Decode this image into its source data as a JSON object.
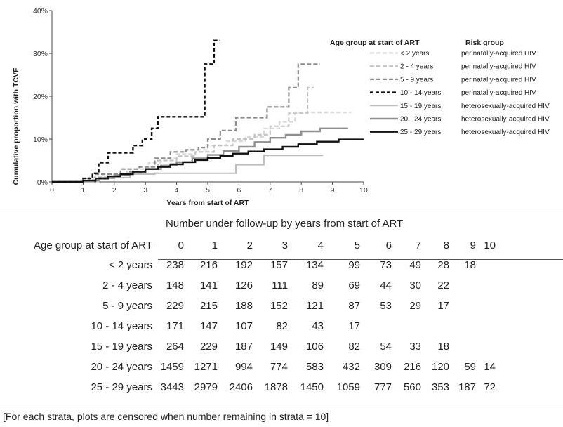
{
  "chart_data": {
    "type": "line",
    "step": true,
    "xlabel": "Years from start of ART",
    "ylabel": "Cumulative proportion with TCVF",
    "xlim": [
      0,
      10
    ],
    "ylim": [
      0,
      40
    ],
    "x_ticks": [
      "0",
      "1",
      "2",
      "3",
      "4",
      "5",
      "6",
      "7",
      "8",
      "9",
      "10"
    ],
    "y_ticks": [
      "0%",
      "10%",
      "20%",
      "30%",
      "40%"
    ],
    "legend": {
      "position": "right",
      "age_header": "Age group at start of ART",
      "risk_header": "Risk group"
    },
    "series": [
      {
        "name": "< 2 years",
        "risk": "perinatally-acquired HIV",
        "color": "#d9d9d9",
        "dash": "6,3",
        "width": 2.2,
        "points": [
          [
            0,
            0
          ],
          [
            1.5,
            0
          ],
          [
            1.5,
            1.2
          ],
          [
            2.0,
            1.2
          ],
          [
            2.0,
            2.0
          ],
          [
            2.6,
            2.0
          ],
          [
            2.6,
            3.0
          ],
          [
            3.1,
            3.0
          ],
          [
            3.1,
            4.5
          ],
          [
            3.5,
            4.5
          ],
          [
            3.5,
            5.5
          ],
          [
            4.0,
            5.5
          ],
          [
            4.0,
            6.5
          ],
          [
            4.5,
            6.5
          ],
          [
            4.5,
            7.5
          ],
          [
            5.0,
            7.5
          ],
          [
            5.0,
            8.5
          ],
          [
            5.6,
            8.5
          ],
          [
            5.6,
            9.5
          ],
          [
            6.2,
            9.5
          ],
          [
            6.2,
            10.5
          ],
          [
            6.8,
            10.5
          ],
          [
            6.8,
            12.5
          ],
          [
            7.3,
            12.5
          ],
          [
            7.3,
            14.0
          ],
          [
            7.8,
            14.0
          ],
          [
            7.8,
            16.2
          ],
          [
            8.0,
            16.2
          ],
          [
            8.6,
            16.2
          ],
          [
            9.6,
            16.2
          ]
        ]
      },
      {
        "name": "2 - 4 years",
        "risk": "perinatally-acquired HIV",
        "color": "#c4c4c4",
        "dash": "6,3",
        "width": 2.2,
        "points": [
          [
            0,
            0
          ],
          [
            1.2,
            0
          ],
          [
            1.2,
            1.0
          ],
          [
            1.8,
            1.0
          ],
          [
            1.8,
            1.8
          ],
          [
            2.4,
            1.8
          ],
          [
            2.4,
            2.5
          ],
          [
            3.0,
            2.5
          ],
          [
            3.0,
            3.5
          ],
          [
            3.4,
            3.5
          ],
          [
            3.4,
            5.0
          ],
          [
            4.0,
            5.0
          ],
          [
            4.0,
            6.0
          ],
          [
            4.6,
            6.0
          ],
          [
            4.6,
            7.0
          ],
          [
            5.2,
            7.0
          ],
          [
            5.2,
            8.5
          ],
          [
            5.8,
            8.5
          ],
          [
            5.8,
            10.0
          ],
          [
            6.5,
            10.0
          ],
          [
            6.5,
            11.0
          ],
          [
            7.0,
            11.0
          ],
          [
            7.0,
            13.0
          ],
          [
            7.6,
            13.0
          ],
          [
            7.6,
            16.0
          ],
          [
            8.2,
            16.0
          ],
          [
            8.2,
            22.0
          ],
          [
            8.4,
            22.0
          ]
        ]
      },
      {
        "name": "5 - 9 years",
        "risk": "perinatally-acquired HIV",
        "color": "#8c8c8c",
        "dash": "6,3",
        "width": 2.2,
        "points": [
          [
            0,
            0
          ],
          [
            1.0,
            0
          ],
          [
            1.0,
            0.8
          ],
          [
            1.3,
            0.8
          ],
          [
            1.3,
            1.8
          ],
          [
            2.2,
            1.8
          ],
          [
            2.2,
            3.0
          ],
          [
            2.8,
            3.0
          ],
          [
            2.8,
            3.5
          ],
          [
            3.3,
            3.5
          ],
          [
            3.3,
            5.5
          ],
          [
            3.8,
            5.5
          ],
          [
            3.8,
            7.0
          ],
          [
            4.3,
            7.0
          ],
          [
            4.3,
            7.5
          ],
          [
            4.7,
            7.5
          ],
          [
            4.7,
            8.0
          ],
          [
            5.0,
            8.0
          ],
          [
            5.0,
            10.0
          ],
          [
            5.4,
            10.0
          ],
          [
            5.4,
            12.0
          ],
          [
            5.9,
            12.0
          ],
          [
            5.9,
            15.0
          ],
          [
            6.9,
            15.0
          ],
          [
            6.9,
            17.5
          ],
          [
            7.6,
            17.5
          ],
          [
            7.6,
            22.0
          ],
          [
            7.9,
            22.0
          ],
          [
            7.9,
            27.5
          ],
          [
            8.6,
            27.5
          ]
        ]
      },
      {
        "name": "10 - 14 years",
        "risk": "perinatally-acquired HIV",
        "color": "#111111",
        "dash": "5,3",
        "width": 2.4,
        "points": [
          [
            0,
            0
          ],
          [
            1.0,
            0
          ],
          [
            1.0,
            0.8
          ],
          [
            1.3,
            0.8
          ],
          [
            1.3,
            2.0
          ],
          [
            1.5,
            2.0
          ],
          [
            1.5,
            4.5
          ],
          [
            1.8,
            4.5
          ],
          [
            1.8,
            6.8
          ],
          [
            2.6,
            6.8
          ],
          [
            2.6,
            8.5
          ],
          [
            2.9,
            8.5
          ],
          [
            2.9,
            10.0
          ],
          [
            3.2,
            10.0
          ],
          [
            3.2,
            12.5
          ],
          [
            3.4,
            12.5
          ],
          [
            3.4,
            15.2
          ],
          [
            4.9,
            15.2
          ],
          [
            4.9,
            27.5
          ],
          [
            5.2,
            27.5
          ],
          [
            5.2,
            33.0
          ],
          [
            5.4,
            33.0
          ]
        ]
      },
      {
        "name": "15 - 19 years",
        "risk": "heterosexually-acquired HIV",
        "color": "#bdbdbd",
        "dash": "",
        "width": 2.0,
        "points": [
          [
            0,
            0
          ],
          [
            1.3,
            0
          ],
          [
            1.3,
            0.5
          ],
          [
            1.8,
            0.5
          ],
          [
            1.8,
            1.0
          ],
          [
            2.5,
            1.0
          ],
          [
            2.5,
            1.8
          ],
          [
            3.3,
            1.8
          ],
          [
            3.3,
            2.0
          ],
          [
            5.9,
            2.0
          ],
          [
            5.9,
            4.0
          ],
          [
            6.8,
            4.0
          ],
          [
            6.8,
            6.2
          ],
          [
            8.7,
            6.2
          ]
        ]
      },
      {
        "name": "20 - 24 years",
        "risk": "heterosexually-acquired HIV",
        "color": "#8f8f8f",
        "dash": "",
        "width": 2.4,
        "points": [
          [
            0,
            0
          ],
          [
            1.0,
            0
          ],
          [
            1.0,
            0.3
          ],
          [
            1.5,
            0.3
          ],
          [
            1.5,
            0.9
          ],
          [
            2.0,
            0.9
          ],
          [
            2.0,
            1.6
          ],
          [
            2.5,
            1.6
          ],
          [
            2.5,
            2.3
          ],
          [
            3.0,
            2.3
          ],
          [
            3.0,
            3.0
          ],
          [
            3.5,
            3.0
          ],
          [
            3.5,
            3.8
          ],
          [
            4.0,
            3.8
          ],
          [
            4.0,
            4.6
          ],
          [
            4.5,
            4.6
          ],
          [
            4.5,
            5.5
          ],
          [
            5.0,
            5.5
          ],
          [
            5.0,
            6.3
          ],
          [
            5.5,
            6.3
          ],
          [
            5.5,
            7.2
          ],
          [
            6.0,
            7.2
          ],
          [
            6.0,
            8.2
          ],
          [
            6.5,
            8.2
          ],
          [
            6.5,
            9.3
          ],
          [
            7.0,
            9.3
          ],
          [
            7.0,
            10.3
          ],
          [
            7.5,
            10.3
          ],
          [
            7.5,
            11.0
          ],
          [
            8.0,
            11.0
          ],
          [
            8.0,
            11.8
          ],
          [
            8.6,
            11.8
          ],
          [
            8.6,
            12.5
          ],
          [
            9.5,
            12.5
          ]
        ]
      },
      {
        "name": "25 - 29 years",
        "risk": "heterosexually-acquired HIV",
        "color": "#111111",
        "dash": "",
        "width": 2.4,
        "points": [
          [
            0,
            0
          ],
          [
            1.0,
            0
          ],
          [
            1.0,
            0.3
          ],
          [
            1.4,
            0.3
          ],
          [
            1.4,
            0.8
          ],
          [
            1.8,
            0.8
          ],
          [
            1.8,
            1.3
          ],
          [
            2.2,
            1.3
          ],
          [
            2.2,
            1.8
          ],
          [
            2.6,
            1.8
          ],
          [
            2.6,
            2.4
          ],
          [
            3.0,
            2.4
          ],
          [
            3.0,
            3.0
          ],
          [
            3.4,
            3.0
          ],
          [
            3.4,
            3.5
          ],
          [
            3.8,
            3.5
          ],
          [
            3.8,
            4.1
          ],
          [
            4.2,
            4.1
          ],
          [
            4.2,
            4.6
          ],
          [
            4.6,
            4.6
          ],
          [
            4.6,
            5.1
          ],
          [
            5.0,
            5.1
          ],
          [
            5.0,
            5.6
          ],
          [
            5.4,
            5.6
          ],
          [
            5.4,
            6.1
          ],
          [
            5.8,
            6.1
          ],
          [
            5.8,
            6.6
          ],
          [
            6.3,
            6.6
          ],
          [
            6.3,
            7.1
          ],
          [
            6.8,
            7.1
          ],
          [
            6.8,
            7.6
          ],
          [
            7.4,
            7.6
          ],
          [
            7.4,
            8.2
          ],
          [
            7.9,
            8.2
          ],
          [
            7.9,
            8.8
          ],
          [
            8.5,
            8.8
          ],
          [
            8.5,
            9.4
          ],
          [
            9.2,
            9.4
          ],
          [
            9.2,
            9.9
          ],
          [
            10.0,
            9.9
          ]
        ]
      }
    ]
  },
  "table": {
    "title": "Number under follow-up by years from start of ART",
    "row_header": "Age group at start of ART",
    "columns": [
      "0",
      "1",
      "2",
      "3",
      "4",
      "5",
      "6",
      "7",
      "8",
      "9",
      "10"
    ],
    "rows": [
      {
        "label": "< 2 years",
        "values": [
          "238",
          "216",
          "192",
          "157",
          "134",
          "99",
          "73",
          "49",
          "28",
          "18",
          ""
        ]
      },
      {
        "label": "2 - 4 years",
        "values": [
          "148",
          "141",
          "126",
          "111",
          "89",
          "69",
          "44",
          "30",
          "22",
          "",
          ""
        ]
      },
      {
        "label": "5 - 9 years",
        "values": [
          "229",
          "215",
          "188",
          "152",
          "121",
          "87",
          "53",
          "29",
          "17",
          "",
          ""
        ]
      },
      {
        "label": "10 - 14 years",
        "values": [
          "171",
          "147",
          "107",
          "82",
          "43",
          "17",
          "",
          "",
          "",
          "",
          ""
        ]
      },
      {
        "label": "15 - 19 years",
        "values": [
          "264",
          "229",
          "187",
          "149",
          "106",
          "82",
          "54",
          "33",
          "18",
          "",
          ""
        ]
      },
      {
        "label": "20 - 24 years",
        "values": [
          "1459",
          "1271",
          "994",
          "774",
          "583",
          "432",
          "309",
          "216",
          "120",
          "59",
          "14"
        ]
      },
      {
        "label": "25 - 29 years",
        "values": [
          "3443",
          "2979",
          "2406",
          "1878",
          "1450",
          "1059",
          "777",
          "560",
          "353",
          "187",
          "72"
        ]
      }
    ]
  },
  "footnote": "[For each strata, plots are censored when number remaining in strata = 10]"
}
